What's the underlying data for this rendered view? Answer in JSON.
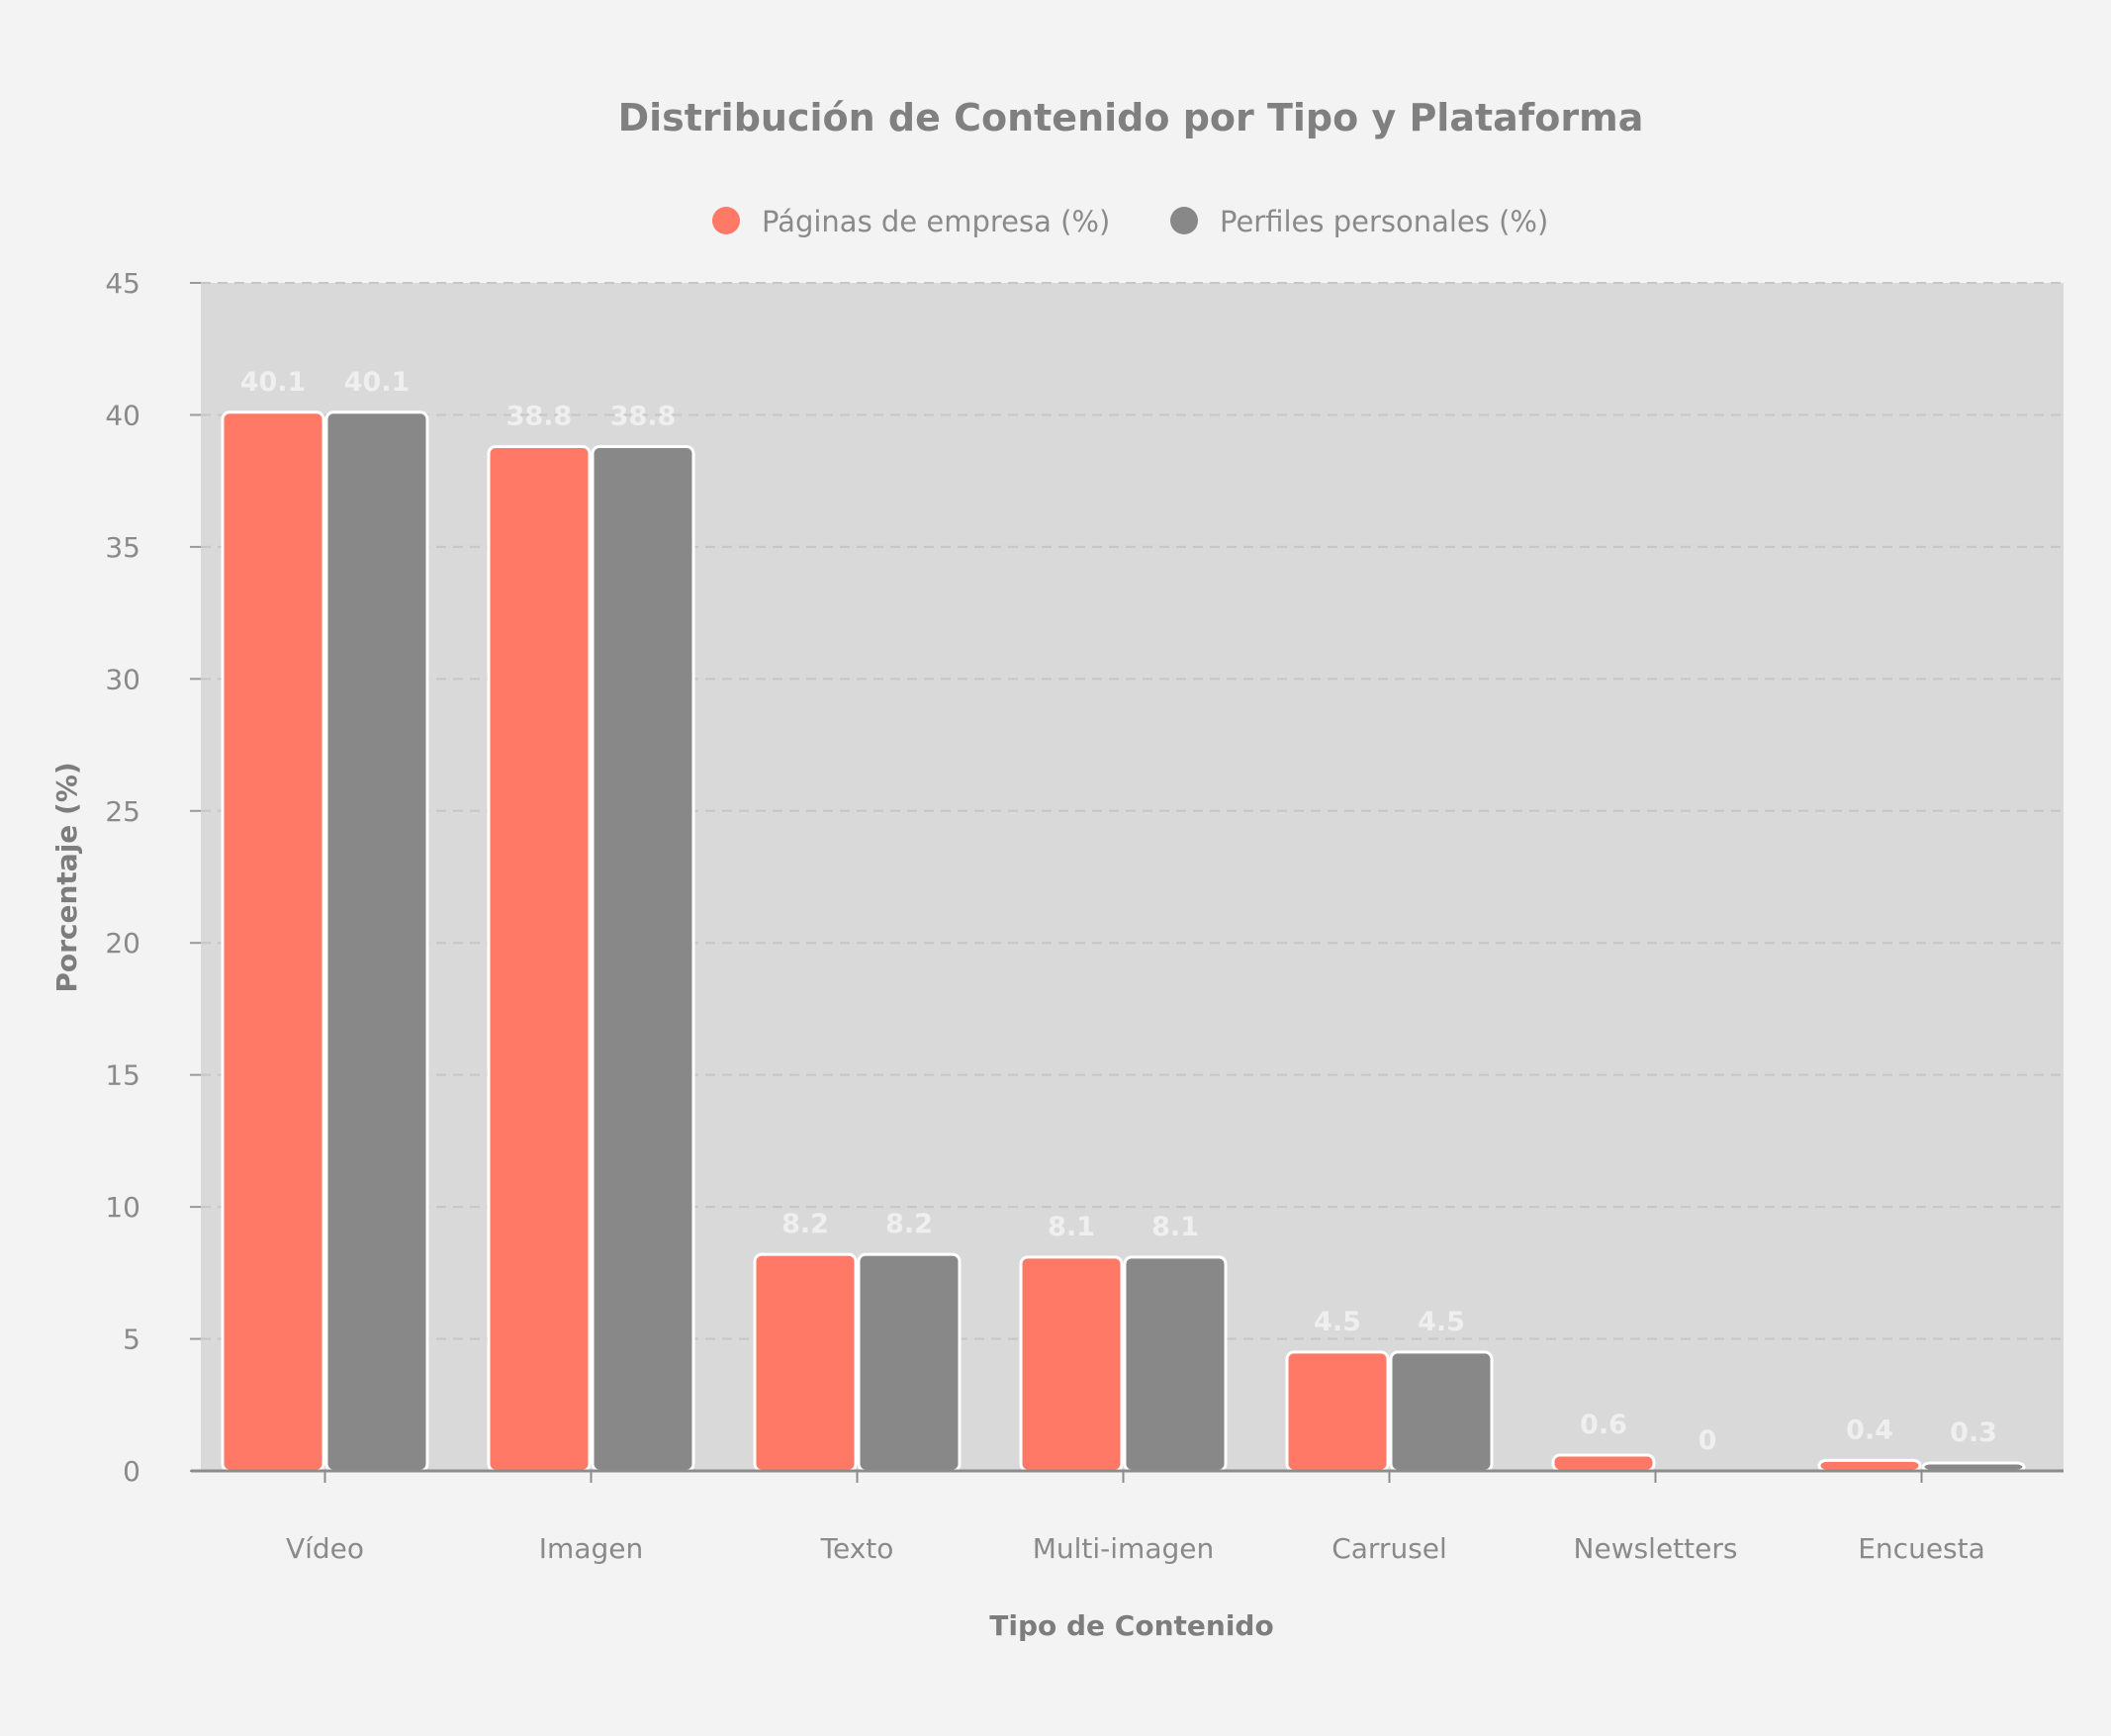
{
  "chart_data": {
    "type": "bar",
    "title": "Distribución de Contenido por Tipo y Plataforma",
    "xlabel": "Tipo de Contenido",
    "ylabel": "Porcentaje (%)",
    "categories": [
      "Vídeo",
      "Imagen",
      "Texto",
      "Multi-imagen",
      "Carrusel",
      "Newsletters",
      "Encuesta"
    ],
    "series": [
      {
        "name": "Páginas de empresa (%)",
        "color": "#ff7966",
        "values": [
          40.1,
          38.8,
          8.2,
          8.1,
          4.5,
          0.6,
          0.4
        ]
      },
      {
        "name": "Perfiles personales (%)",
        "color": "#888888",
        "values": [
          40.1,
          38.8,
          8.2,
          8.1,
          4.5,
          0,
          0.3
        ]
      }
    ],
    "ylim": [
      0,
      45
    ],
    "yticks": [
      0,
      5,
      10,
      15,
      20,
      25,
      30,
      35,
      40,
      45
    ],
    "grid": true,
    "legend_position": "top-center",
    "plot_background": "#d9d9d9",
    "page_background": "#f3f3f3"
  }
}
